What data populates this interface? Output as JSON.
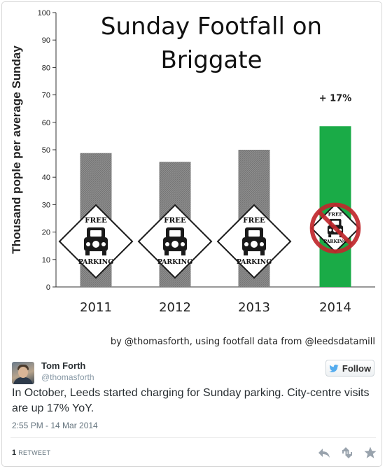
{
  "chart_data": {
    "type": "bar",
    "title": "Sunday Footfall on Briggate",
    "title_lines": [
      "Sunday Footfall on",
      "Briggate"
    ],
    "ylabel": "Thousand pople per average Sunday",
    "xlabel": "",
    "categories": [
      "2011",
      "2012",
      "2013",
      "2014"
    ],
    "values": [
      48.8,
      45.6,
      50.0,
      58.6
    ],
    "ylim": [
      0,
      100
    ],
    "yticks": [
      0,
      10,
      20,
      30,
      40,
      50,
      60,
      70,
      80,
      90,
      100
    ],
    "grid": false,
    "annotation": "+ 17%",
    "source": "by @thomasforth, using footfall data from @leedsdatamill",
    "bar_colors": [
      "#8c8c8c",
      "#8c8c8c",
      "#8c8c8c",
      "#1aab47"
    ],
    "sign_text": {
      "top": "FREE",
      "bottom": "PARKING"
    },
    "crossed_sign_color": "#c0282d"
  },
  "tweet": {
    "name": "Tom Forth",
    "handle": "@thomasforth",
    "follow_label": "Follow",
    "text": "In October, Leeds started charging for Sunday parking. City-centre visits are up 17% YoY.",
    "time": "2:55 PM - 14 Mar 2014",
    "retweet_count": "1",
    "retweet_label": "RETWEET",
    "accent_color": "#55acee",
    "icons": [
      "reply-icon",
      "retweet-icon",
      "favorite-icon"
    ]
  }
}
